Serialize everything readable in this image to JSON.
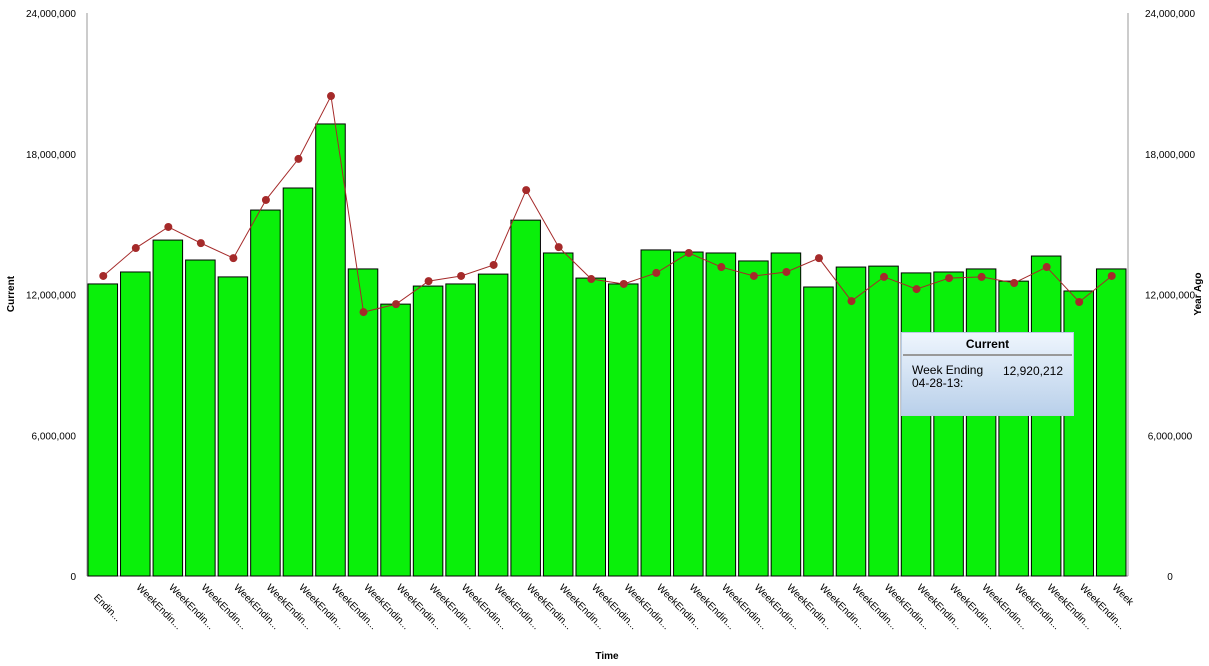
{
  "chart_data": {
    "type": "bar+line",
    "xlabel": "Time",
    "ylabel_left": "Current",
    "ylabel_right": "Year Ago",
    "ylim": [
      0,
      24000000
    ],
    "yticks": [
      "0",
      "6,000,000",
      "12,000,000",
      "18,000,000",
      "24,000,000"
    ],
    "ytick_values": [
      0,
      6000000,
      12000000,
      18000000,
      24000000
    ],
    "categories": [
      "Endin...",
      "WeekEndin...",
      "WeekEndin...",
      "WeekEndin...",
      "WeekEndin...",
      "WeekEndin...",
      "WeekEndin...",
      "WeekEndin...",
      "WeekEndin...",
      "WeekEndin...",
      "WeekEndin...",
      "WeekEndin...",
      "WeekEndin...",
      "WeekEndin...",
      "WeekEndin...",
      "WeekEndin...",
      "WeekEndin...",
      "WeekEndin...",
      "WeekEndin...",
      "WeekEndin...",
      "WeekEndin...",
      "WeekEndin...",
      "WeekEndin...",
      "WeekEndin...",
      "WeekEndin...",
      "WeekEndin...",
      "WeekEndin...",
      "WeekEndin...",
      "WeekEndin...",
      "WeekEndin...",
      "WeekEndin...",
      "Week"
    ],
    "series": [
      {
        "name": "Current",
        "type": "bar",
        "color": "#0af00a",
        "values": [
          12450000,
          12960000,
          14320000,
          13470000,
          12750000,
          15600000,
          16540000,
          19270000,
          13090000,
          11590000,
          12360000,
          12450000,
          12870000,
          15170000,
          13770000,
          12700000,
          12450000,
          13900000,
          13810000,
          13770000,
          13430000,
          13770000,
          12320000,
          13170000,
          13210000,
          12920212,
          12960000,
          13090000,
          12570000,
          13640000,
          12150000,
          13090000
        ]
      },
      {
        "name": "Year Ago",
        "type": "line",
        "color": "#a52a2a",
        "values": [
          12790000,
          13980000,
          14880000,
          14190000,
          13550000,
          16030000,
          17780000,
          20460000,
          11250000,
          11590000,
          12570000,
          12790000,
          13260000,
          16450000,
          14020000,
          12660000,
          12450000,
          12920000,
          13770000,
          13170000,
          12790000,
          12960000,
          13550000,
          11720000,
          12750000,
          12230000,
          12700000,
          12750000,
          12490000,
          13170000,
          11680000,
          12790000
        ]
      }
    ],
    "grid": false,
    "tooltip": {
      "title": "Current",
      "label": "Week Ending 04-28-13:",
      "value": "12,920,212"
    }
  }
}
